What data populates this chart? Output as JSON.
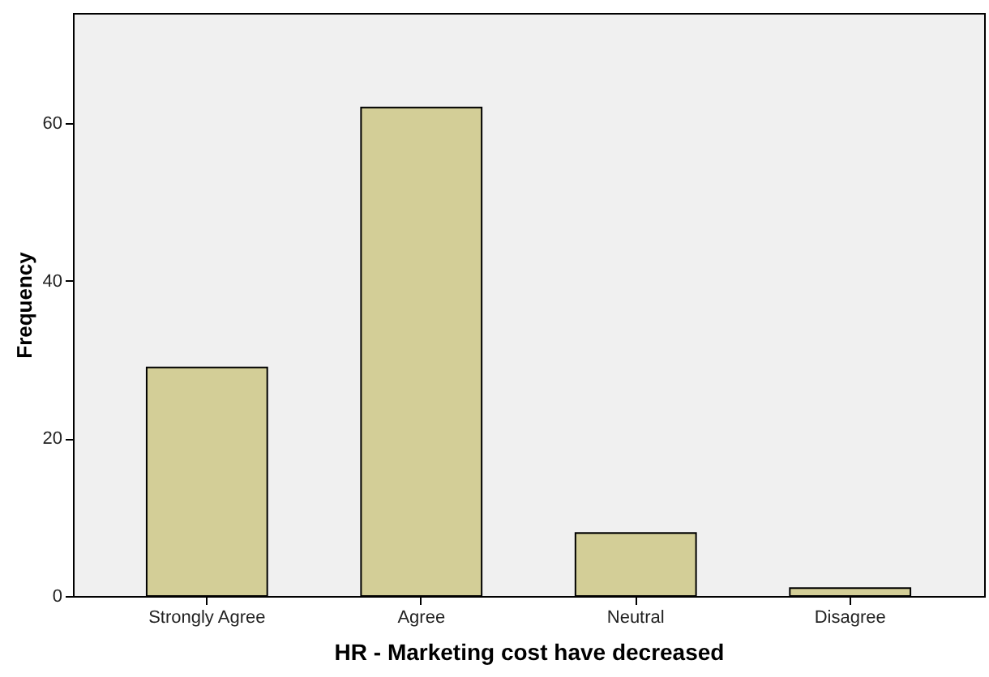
{
  "chart_data": {
    "type": "bar",
    "xlabel": "HR - Marketing cost have decreased",
    "ylabel": "Frequency",
    "categories": [
      "Strongly Agree",
      "Agree",
      "Neutral",
      "Disagree"
    ],
    "values": [
      29,
      62,
      8,
      1
    ],
    "color": "#d3ce97",
    "ylim": [
      0,
      74
    ],
    "yticks": [
      0,
      20,
      40,
      60
    ],
    "grid": false
  }
}
